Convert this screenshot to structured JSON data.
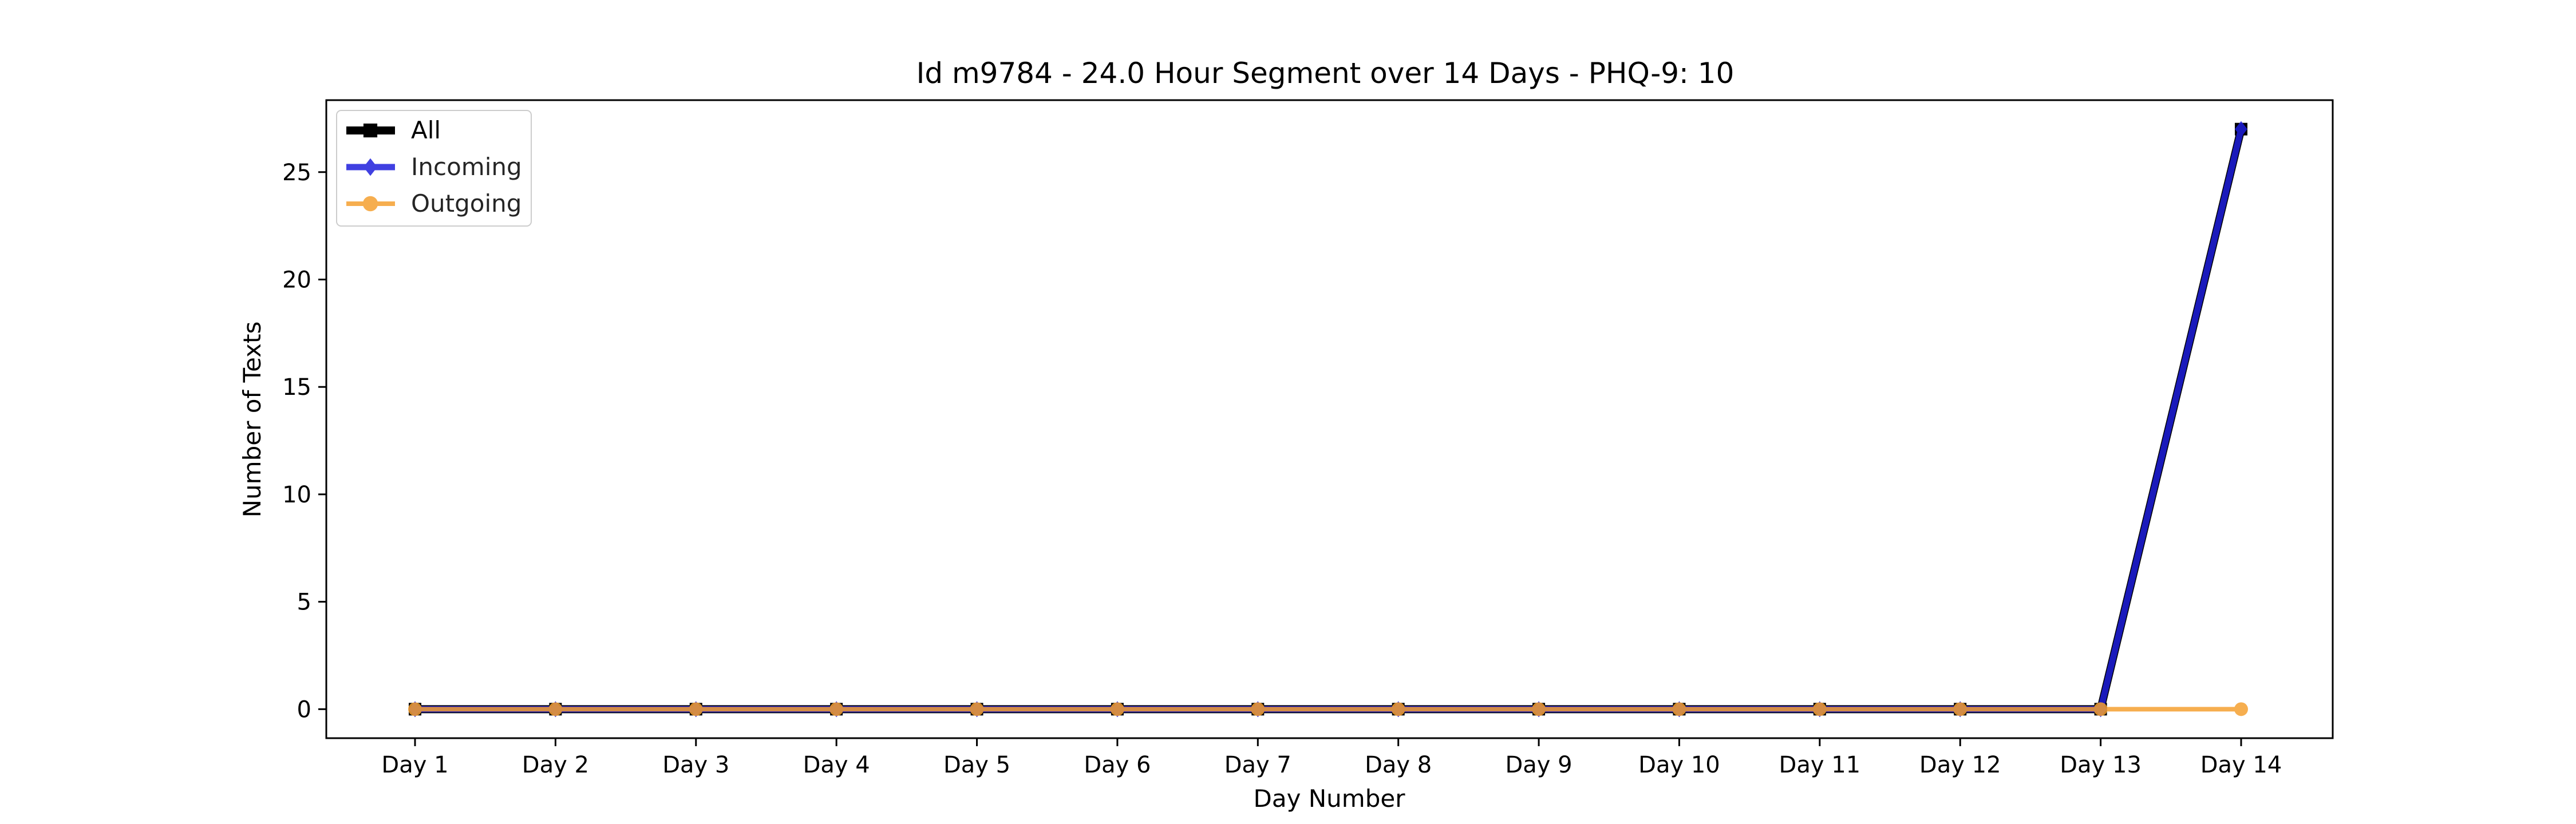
{
  "chart_data": {
    "type": "line",
    "title": "Id m9784 - 24.0 Hour Segment over 14 Days - PHQ-9: 10",
    "xlabel": "Day Number",
    "ylabel": "Number of Texts",
    "categories": [
      "Day 1",
      "Day 2",
      "Day 3",
      "Day 4",
      "Day 5",
      "Day 6",
      "Day 7",
      "Day 8",
      "Day 9",
      "Day 10",
      "Day 11",
      "Day 12",
      "Day 13",
      "Day 14"
    ],
    "yticks": [
      0,
      5,
      10,
      15,
      20,
      25
    ],
    "ylim": [
      -1.35,
      28.35
    ],
    "grid": false,
    "legend_position": "top-left",
    "series": [
      {
        "name": "All",
        "color": "#000000",
        "marker": "square",
        "values": [
          0,
          0,
          0,
          0,
          0,
          0,
          0,
          0,
          0,
          0,
          0,
          0,
          0,
          27
        ]
      },
      {
        "name": "Incoming",
        "color": "#1f1fdc",
        "marker": "diamond",
        "values": [
          0,
          0,
          0,
          0,
          0,
          0,
          0,
          0,
          0,
          0,
          0,
          0,
          0,
          27
        ]
      },
      {
        "name": "Outgoing",
        "color": "#f5a031",
        "marker": "circle",
        "values": [
          0,
          0,
          0,
          0,
          0,
          0,
          0,
          0,
          0,
          0,
          0,
          0,
          0,
          0
        ]
      }
    ]
  }
}
